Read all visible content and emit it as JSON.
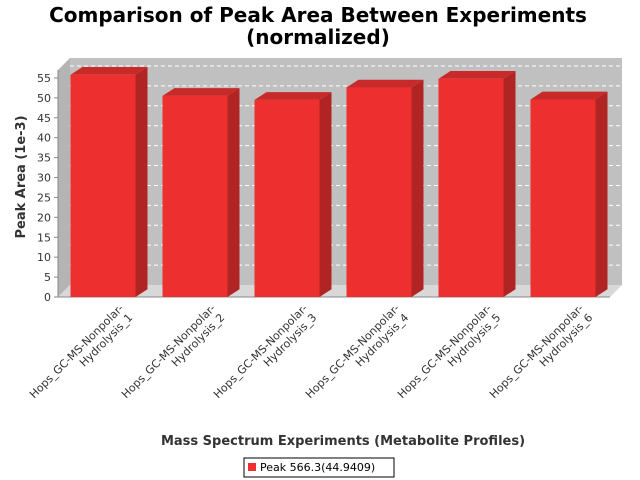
{
  "chart_data": {
    "type": "bar",
    "title": "Comparison of Peak Area Between Experiments",
    "subtitle": "(normalized)",
    "xlabel": "Mass Spectrum Experiments (Metabolite Profiles)",
    "ylabel": "Peak Area (1e-3)",
    "ylim": [
      0,
      57
    ],
    "yticks": [
      "0",
      "5",
      "10",
      "15",
      "20",
      "25",
      "30",
      "35",
      "40",
      "45",
      "50",
      "55"
    ],
    "grid": true,
    "legend_position": "bottom",
    "bar_style": "3d",
    "categories": [
      {
        "line1": "Hops_GC-MS-Nonpolar-",
        "line2": "Hydrolysis_1"
      },
      {
        "line1": "Hops_GC-MS-Nonpolar-",
        "line2": "Hydrolysis_2"
      },
      {
        "line1": "Hops_GC-MS-Nonpolar-",
        "line2": "Hydrolysis_3"
      },
      {
        "line1": "Hops_GC-MS-Nonpolar-",
        "line2": "Hydrolysis_4"
      },
      {
        "line1": "Hops_GC-MS-Nonpolar-",
        "line2": "Hydrolysis_5"
      },
      {
        "line1": "Hops_GC-MS-Nonpolar-",
        "line2": "Hydrolysis_6"
      }
    ],
    "series": [
      {
        "name": "Peak 566.3(44.9409)",
        "color": "#f03030",
        "values": [
          55.8,
          50.5,
          49.5,
          52.6,
          54.8,
          49.6
        ]
      }
    ]
  },
  "colors": {
    "plot_background": "#c0c0c0",
    "floor": "#d8d8d8",
    "bar_front": "#ee2f2f",
    "bar_side": "#b02424",
    "bar_top": "#c82a2a",
    "gridline": "#ffffff"
  }
}
